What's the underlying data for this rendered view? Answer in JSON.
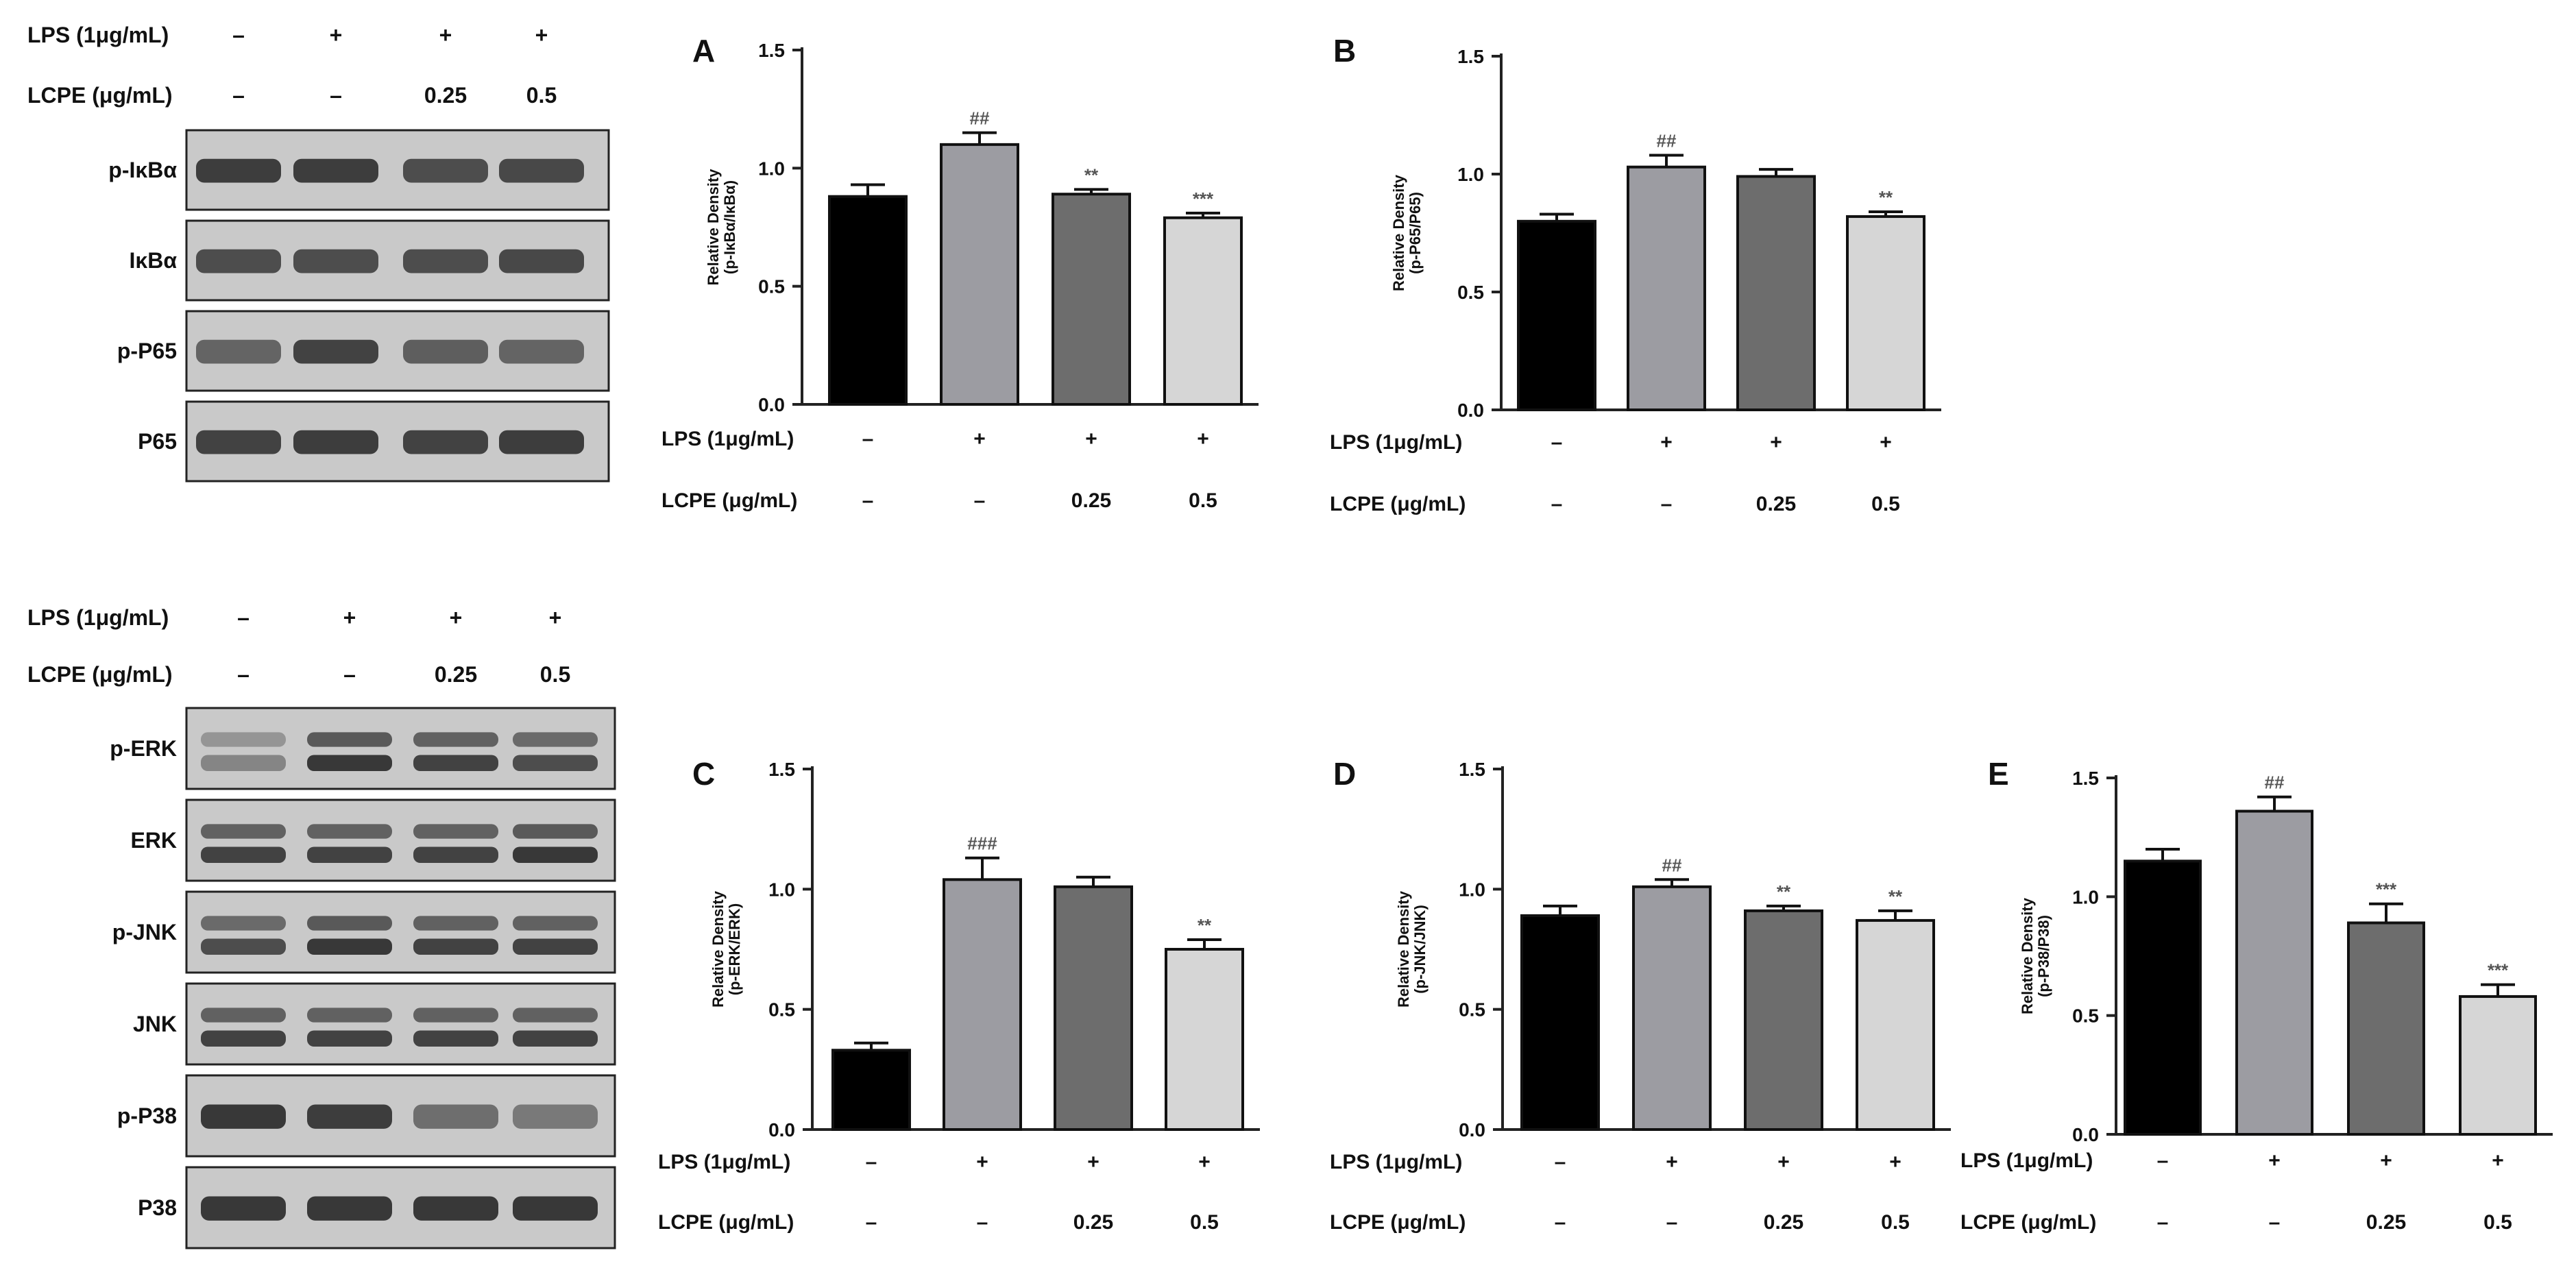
{
  "blot_top": {
    "lps_label": "LPS (1μg/mL)",
    "lcpe_label": "LCPE  (μg/mL)",
    "lps_values": [
      "–",
      "+",
      "+",
      "+"
    ],
    "lcpe_values": [
      "–",
      "–",
      "0.25",
      "0.5"
    ],
    "bands": [
      "p-IκBα",
      "IκBα",
      "p-P65",
      "P65"
    ]
  },
  "blot_bottom": {
    "lps_label": "LPS (1μg/mL)",
    "lcpe_label": "LCPE  (μg/mL)",
    "lps_values": [
      "–",
      "+",
      "+",
      "+"
    ],
    "lcpe_values": [
      "–",
      "–",
      "0.25",
      "0.5"
    ],
    "bands": [
      "p-ERK",
      "ERK",
      "p-JNK",
      "JNK",
      "p-P38",
      "P38"
    ]
  },
  "chart_data": [
    {
      "panel": "A",
      "type": "bar",
      "ylabel": "Relative Density",
      "ylabel2": "(p-IκBα/IκBα)",
      "ylim": [
        0,
        1.5
      ],
      "yticks": [
        "0.0",
        "0.5",
        "1.0",
        "1.5"
      ],
      "values": [
        0.88,
        1.1,
        0.89,
        0.79
      ],
      "errors": [
        0.05,
        0.05,
        0.02,
        0.02
      ],
      "annotations": [
        "",
        "##",
        "**",
        "***"
      ],
      "colors": [
        "#000000",
        "#9c9ca2",
        "#6d6d6d",
        "#d6d6d6"
      ],
      "lps_label": "LPS (1μg/mL)",
      "lcpe_label": "LCPE  (μg/mL)",
      "lps_values": [
        "–",
        "+",
        "+",
        "+"
      ],
      "lcpe_values": [
        "–",
        "–",
        "0.25",
        "0.5"
      ]
    },
    {
      "panel": "B",
      "type": "bar",
      "ylabel": "Relative Density",
      "ylabel2": "(p-P65/P65)",
      "ylim": [
        0,
        1.5
      ],
      "yticks": [
        "0.0",
        "0.5",
        "1.0",
        "1.5"
      ],
      "values": [
        0.8,
        1.03,
        0.99,
        0.82
      ],
      "errors": [
        0.03,
        0.05,
        0.03,
        0.02
      ],
      "annotations": [
        "",
        "##",
        "",
        "**"
      ],
      "colors": [
        "#000000",
        "#9c9ca2",
        "#6d6d6d",
        "#d6d6d6"
      ],
      "lps_label": "LPS (1μg/mL)",
      "lcpe_label": "LCPE  (μg/mL)",
      "lps_values": [
        "–",
        "+",
        "+",
        "+"
      ],
      "lcpe_values": [
        "–",
        "–",
        "0.25",
        "0.5"
      ]
    },
    {
      "panel": "C",
      "type": "bar",
      "ylabel": "Relative Density",
      "ylabel2": "(p-ERK/ERK)",
      "ylim": [
        0,
        1.5
      ],
      "yticks": [
        "0.0",
        "0.5",
        "1.0",
        "1.5"
      ],
      "values": [
        0.33,
        1.04,
        1.01,
        0.75
      ],
      "errors": [
        0.03,
        0.09,
        0.04,
        0.04
      ],
      "annotations": [
        "",
        "###",
        "",
        "**"
      ],
      "colors": [
        "#000000",
        "#9c9ca2",
        "#6d6d6d",
        "#d6d6d6"
      ],
      "lps_label": "LPS (1μg/mL)",
      "lcpe_label": "LCPE  (μg/mL)",
      "lps_values": [
        "–",
        "+",
        "+",
        "+"
      ],
      "lcpe_values": [
        "–",
        "–",
        "0.25",
        "0.5"
      ]
    },
    {
      "panel": "D",
      "type": "bar",
      "ylabel": "Relative Density",
      "ylabel2": "(p-JNK/JNK)",
      "ylim": [
        0,
        1.5
      ],
      "yticks": [
        "0.0",
        "0.5",
        "1.0",
        "1.5"
      ],
      "values": [
        0.89,
        1.01,
        0.91,
        0.87
      ],
      "errors": [
        0.04,
        0.03,
        0.02,
        0.04
      ],
      "annotations": [
        "",
        "##",
        "**",
        "**"
      ],
      "colors": [
        "#000000",
        "#9c9ca2",
        "#6d6d6d",
        "#d6d6d6"
      ],
      "lps_label": "LPS (1μg/mL)",
      "lcpe_label": "LCPE  (μg/mL)",
      "lps_values": [
        "–",
        "+",
        "+",
        "+"
      ],
      "lcpe_values": [
        "–",
        "–",
        "0.25",
        "0.5"
      ]
    },
    {
      "panel": "E",
      "type": "bar",
      "ylabel": "Relative Density",
      "ylabel2": "(p-P38/P38)",
      "ylim": [
        0,
        1.5
      ],
      "yticks": [
        "0.0",
        "0.5",
        "1.0",
        "1.5"
      ],
      "values": [
        1.15,
        1.36,
        0.89,
        0.58
      ],
      "errors": [
        0.05,
        0.06,
        0.08,
        0.05
      ],
      "annotations": [
        "",
        "##",
        "***",
        "***"
      ],
      "colors": [
        "#000000",
        "#9c9ca2",
        "#6d6d6d",
        "#d6d6d6"
      ],
      "lps_label": "LPS (1μg/mL)",
      "lcpe_label": "LCPE  (μg/mL)",
      "lps_values": [
        "–",
        "+",
        "+",
        "+"
      ],
      "lcpe_values": [
        "–",
        "–",
        "0.25",
        "0.5"
      ]
    }
  ]
}
